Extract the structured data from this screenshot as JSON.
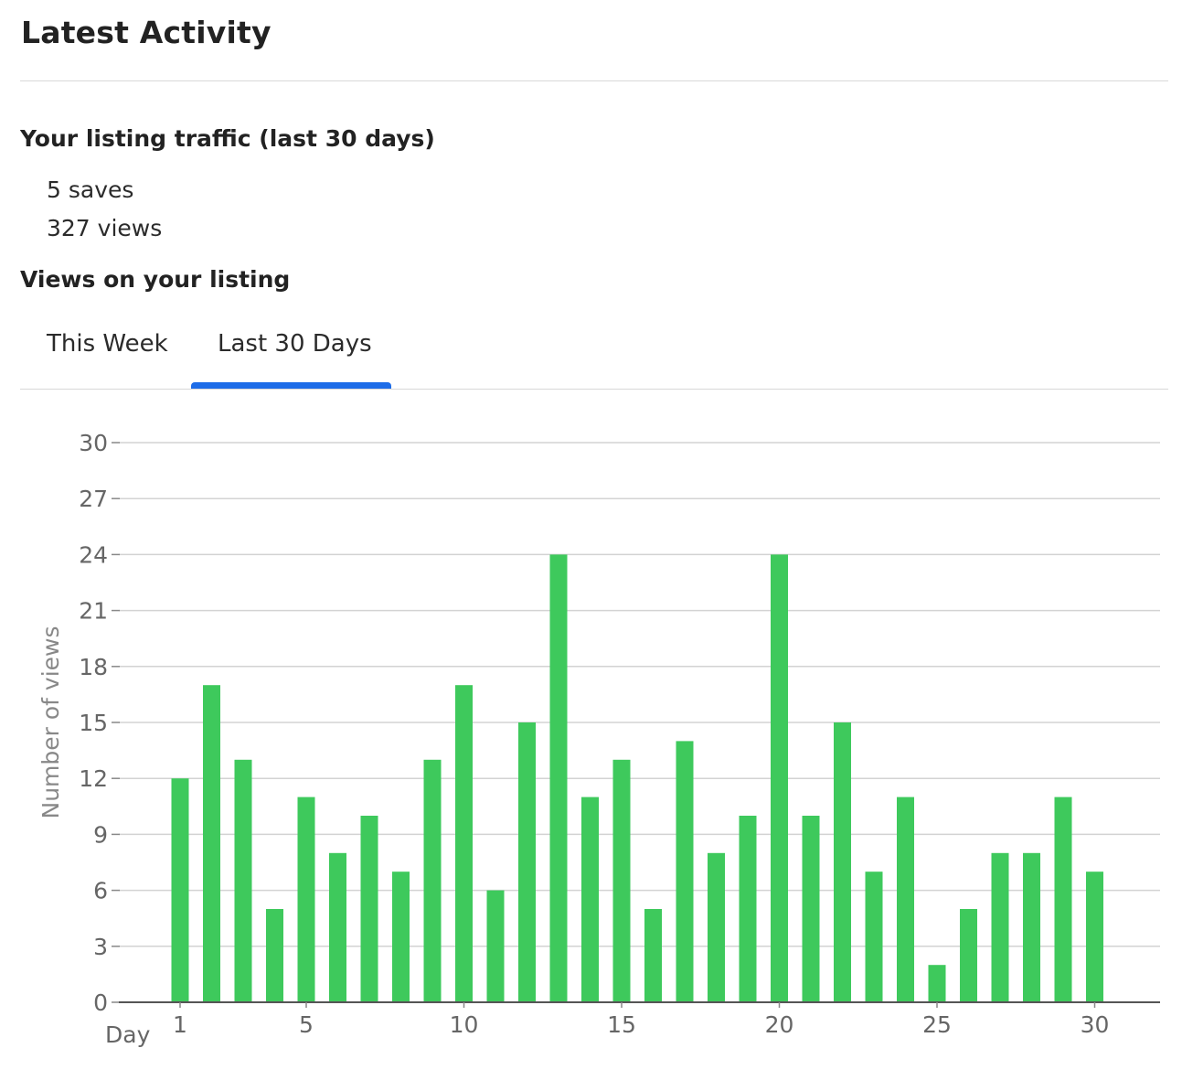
{
  "header": {
    "title": "Latest Activity"
  },
  "traffic": {
    "heading": "Your listing traffic (last 30 days)",
    "saves": "5 saves",
    "views": "327 views"
  },
  "views_section": {
    "heading": "Views on your listing",
    "tabs": [
      {
        "label": "This Week",
        "active": false
      },
      {
        "label": "Last 30 Days",
        "active": true
      }
    ]
  },
  "colors": {
    "bar": "#3ec95c",
    "tab_active": "#1d6ce8",
    "grid": "#d3d3d3",
    "axis_text": "#666666"
  },
  "chart_data": {
    "type": "bar",
    "title": "",
    "xlabel": "Day",
    "ylabel": "Number of views",
    "x": [
      1,
      2,
      3,
      4,
      5,
      6,
      7,
      8,
      9,
      10,
      11,
      12,
      13,
      14,
      15,
      16,
      17,
      18,
      19,
      20,
      21,
      22,
      23,
      24,
      25,
      26,
      27,
      28,
      29,
      30
    ],
    "values": [
      12,
      17,
      13,
      5,
      11,
      8,
      10,
      7,
      13,
      17,
      6,
      15,
      24,
      11,
      13,
      5,
      14,
      8,
      10,
      24,
      10,
      15,
      7,
      11,
      2,
      5,
      8,
      8,
      11,
      7
    ],
    "ylim": [
      0,
      30
    ],
    "yticks": [
      0,
      3,
      6,
      9,
      12,
      15,
      18,
      21,
      24,
      27,
      30
    ],
    "xticks": [
      1,
      5,
      10,
      15,
      20,
      25,
      30
    ],
    "grid": true
  }
}
